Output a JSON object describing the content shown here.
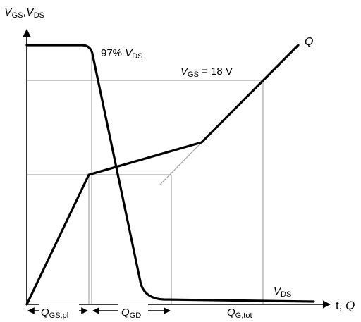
{
  "y_axis_label": {
    "v1": "V",
    "s1": "GS",
    "sep": ",",
    "v2": "V",
    "s2": "DS"
  },
  "x_axis_label": {
    "t": "t, ",
    "q": "Q"
  },
  "annotations": {
    "vds_97": {
      "pre": "97% ",
      "v": "V",
      "sub": "DS"
    },
    "vgs_18": {
      "v": "V",
      "sub": "GS",
      "post": " = 18 V"
    },
    "q_curve": "Q",
    "vds_curve": {
      "v": "V",
      "sub": "DS"
    }
  },
  "dimensions": {
    "q_gs_pl": {
      "q": "Q",
      "sub": "GS,pl"
    },
    "q_gd": {
      "q": "Q",
      "sub": "GD"
    },
    "q_g_tot": {
      "q": "Q",
      "sub": "G,tot"
    }
  },
  "colors": {
    "curve": "#000000",
    "helper_lines": "#a6a6a6"
  }
}
